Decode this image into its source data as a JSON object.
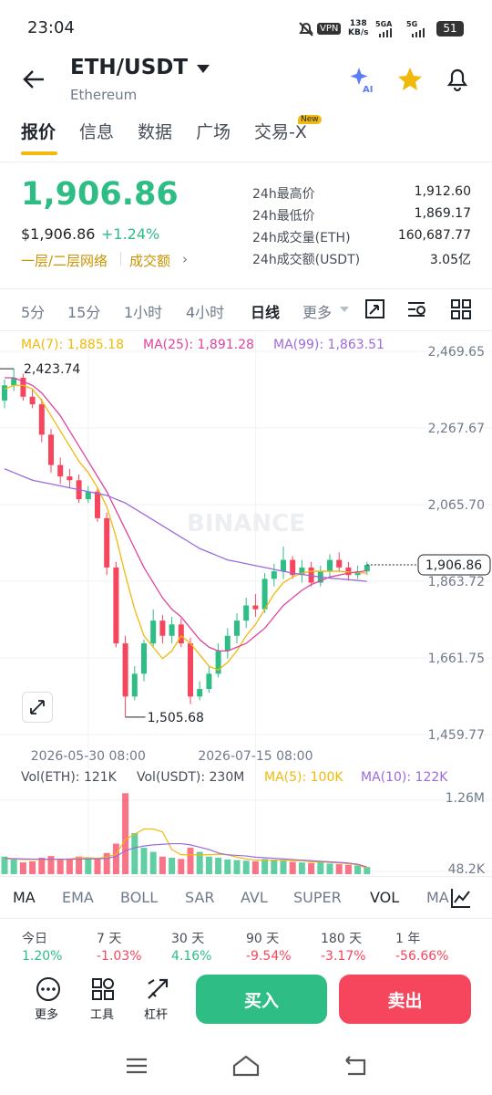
{
  "status_bar": {
    "time": "23:04",
    "vpn": "VPN",
    "speed": "138",
    "speed_unit": "KB/s",
    "net1": "5GA",
    "net2": "5G",
    "battery": "51"
  },
  "header": {
    "pair": "ETH/USDT",
    "name": "Ethereum"
  },
  "tabs": {
    "items": [
      "报价",
      "信息",
      "数据",
      "广场",
      "交易-X"
    ],
    "badge": "New"
  },
  "ticker": {
    "price": "1,906.86",
    "usd_price": "$1,906.86",
    "change": "+1.24%",
    "tag1": "一层/二层网络",
    "tag2": "成交额"
  },
  "stats": [
    {
      "label": "24h最高价",
      "value": "1,912.60"
    },
    {
      "label": "24h最低价",
      "value": "1,869.17"
    },
    {
      "label": "24h成交量(ETH)",
      "value": "160,687.77"
    },
    {
      "label": "24h成交额(USDT)",
      "value": "3.05亿"
    }
  ],
  "timeframes": [
    "5分",
    "15分",
    "1小时",
    "4小时",
    "日线",
    "更多"
  ],
  "chart_data": {
    "type": "candlestick",
    "categories": [
      null,
      null,
      null,
      null,
      null,
      null,
      null,
      null,
      null,
      "2026-05-30 08:00",
      null,
      null,
      null,
      null,
      null,
      null,
      null,
      null,
      null,
      null,
      null,
      null,
      null,
      null,
      null,
      null,
      null,
      "2026-07-15 08:00",
      null,
      null,
      null,
      null,
      null,
      null,
      null,
      null,
      null,
      null,
      null,
      null
    ],
    "open": [
      2340,
      2380,
      2400,
      2350,
      2330,
      2250,
      2170,
      2140,
      2130,
      2080,
      2100,
      2030,
      1900,
      1700,
      1560,
      1620,
      1700,
      1760,
      1720,
      1750,
      1700,
      1560,
      1580,
      1620,
      1680,
      1720,
      1760,
      1800,
      1790,
      1870,
      1890,
      1920,
      1880,
      1900,
      1860,
      1890,
      1920,
      1900,
      1880,
      1890
    ],
    "high": [
      2395,
      2423.74,
      2410,
      2370,
      2345,
      2265,
      2190,
      2160,
      2145,
      2115,
      2110,
      2045,
      1915,
      1720,
      1640,
      1710,
      1790,
      1775,
      1770,
      1765,
      1715,
      1600,
      1640,
      1700,
      1740,
      1780,
      1820,
      1830,
      1885,
      1910,
      1955,
      1930,
      1920,
      1915,
      1905,
      1935,
      1940,
      1915,
      1905,
      1915
    ],
    "low": [
      2320,
      2365,
      2340,
      2320,
      2230,
      2150,
      2120,
      2110,
      2070,
      2070,
      2020,
      1880,
      1690,
      1505.68,
      1550,
      1600,
      1690,
      1700,
      1700,
      1690,
      1540,
      1550,
      1570,
      1610,
      1660,
      1700,
      1740,
      1770,
      1780,
      1850,
      1870,
      1870,
      1860,
      1850,
      1850,
      1875,
      1890,
      1865,
      1870,
      1880
    ],
    "close": [
      2380,
      2400,
      2350,
      2330,
      2250,
      2170,
      2140,
      2130,
      2080,
      2100,
      2030,
      1900,
      1700,
      1560,
      1620,
      1700,
      1760,
      1720,
      1750,
      1700,
      1560,
      1580,
      1620,
      1680,
      1720,
      1760,
      1800,
      1790,
      1870,
      1890,
      1920,
      1880,
      1900,
      1860,
      1890,
      1920,
      1900,
      1880,
      1890,
      1906.86
    ],
    "up_color": "#2ebd85",
    "down_color": "#f6465d",
    "series": [
      {
        "name": "MA(7): 1,885.18",
        "color": "#f0b90b",
        "values": [
          2370,
          2380,
          2380,
          2370,
          2340,
          2300,
          2260,
          2220,
          2180,
          2150,
          2110,
          2060,
          1980,
          1880,
          1790,
          1720,
          1690,
          1660,
          1680,
          1720,
          1700,
          1670,
          1640,
          1630,
          1650,
          1680,
          1720,
          1750,
          1790,
          1830,
          1860,
          1875,
          1885,
          1890,
          1890,
          1890,
          1890,
          1888,
          1886,
          1885.18
        ]
      },
      {
        "name": "MA(25): 1,891.28",
        "color": "#e0439d",
        "values": [
          2400,
          2400,
          2390,
          2380,
          2360,
          2330,
          2300,
          2260,
          2220,
          2180,
          2140,
          2100,
          2050,
          2000,
          1950,
          1900,
          1860,
          1820,
          1790,
          1770,
          1740,
          1710,
          1690,
          1680,
          1680,
          1690,
          1700,
          1720,
          1740,
          1770,
          1800,
          1820,
          1840,
          1855,
          1865,
          1875,
          1880,
          1885,
          1888,
          1891.28
        ]
      },
      {
        "name": "MA(99): 1,863.51",
        "color": "#9c6ade",
        "values": [
          2160,
          2150,
          2140,
          2130,
          2125,
          2120,
          2115,
          2110,
          2105,
          2100,
          2095,
          2090,
          2080,
          2070,
          2055,
          2040,
          2025,
          2010,
          1995,
          1980,
          1965,
          1950,
          1940,
          1930,
          1920,
          1915,
          1910,
          1905,
          1900,
          1895,
          1890,
          1885,
          1882,
          1878,
          1875,
          1872,
          1870,
          1868,
          1866,
          1863.51
        ]
      }
    ],
    "ylim": [
      1459.77,
      2469.65
    ],
    "yticks": [
      {
        "value": 1459.77,
        "label": "1,459.77"
      },
      {
        "value": 1661.75,
        "label": "1,661.75"
      },
      {
        "value": 1863.72,
        "label": "1,863.72"
      },
      {
        "value": 2065.7,
        "label": "2,065.70"
      },
      {
        "value": 2267.67,
        "label": "2,267.67"
      },
      {
        "value": 2469.65,
        "label": "2,469.65"
      }
    ],
    "grid": true,
    "high_label": "2,423.74",
    "low_label": "1,505.68",
    "last_label": "1,906.86",
    "watermark": "BINANCE",
    "volume": {
      "legend": [
        "Vol(ETH): 121K",
        "Vol(USDT): 230M"
      ],
      "values": [
        300000,
        250000,
        200000,
        220000,
        280000,
        310000,
        250000,
        260000,
        300000,
        280000,
        260000,
        360000,
        520000,
        1380000,
        700000,
        450000,
        380000,
        300000,
        280000,
        260000,
        450000,
        380000,
        300000,
        280000,
        250000,
        240000,
        230000,
        220000,
        260000,
        240000,
        230000,
        210000,
        200000,
        190000,
        210000,
        180000,
        170000,
        160000,
        150000,
        121000
      ],
      "series": [
        {
          "name": "MA(5): 100K",
          "color": "#f0b90b",
          "values": [
            260000,
            260000,
            250000,
            250000,
            250000,
            250000,
            250000,
            260000,
            280000,
            280000,
            270000,
            290000,
            340000,
            590000,
            680000,
            770000,
            770000,
            720000,
            420000,
            330000,
            330000,
            330000,
            330000,
            340000,
            330000,
            290000,
            260000,
            240000,
            240000,
            240000,
            240000,
            230000,
            230000,
            210000,
            210000,
            200000,
            190000,
            180000,
            160000,
            100000
          ]
        },
        {
          "name": "MA(10): 122K",
          "color": "#9c6ade",
          "values": [
            270000,
            265000,
            260000,
            258000,
            255000,
            254000,
            255000,
            256000,
            258000,
            260000,
            262000,
            270000,
            300000,
            400000,
            450000,
            480000,
            500000,
            510000,
            520000,
            520000,
            500000,
            460000,
            420000,
            360000,
            330000,
            320000,
            310000,
            290000,
            280000,
            270000,
            260000,
            250000,
            240000,
            230000,
            220000,
            210000,
            200000,
            190000,
            170000,
            122000
          ]
        }
      ],
      "ylim": [
        0,
        1400000
      ],
      "yticks": [
        {
          "value": 48200,
          "label": "48.2K"
        },
        {
          "value": 1260000,
          "label": "1.26M"
        }
      ]
    }
  },
  "indicators": [
    "MA",
    "EMA",
    "BOLL",
    "SAR",
    "AVL",
    "SUPER",
    "VOL",
    "MA"
  ],
  "performance": [
    {
      "label": "今日",
      "value": "1.20%"
    },
    {
      "label": "7 天",
      "value": "-1.03%"
    },
    {
      "label": "30 天",
      "value": "4.16%"
    },
    {
      "label": "90 天",
      "value": "-9.54%"
    },
    {
      "label": "180 天",
      "value": "-3.17%"
    },
    {
      "label": "1 年",
      "value": "-56.66%"
    }
  ],
  "actions": {
    "more": "更多",
    "tools": "工具",
    "margin": "杠杆",
    "buy": "买入",
    "sell": "卖出"
  }
}
